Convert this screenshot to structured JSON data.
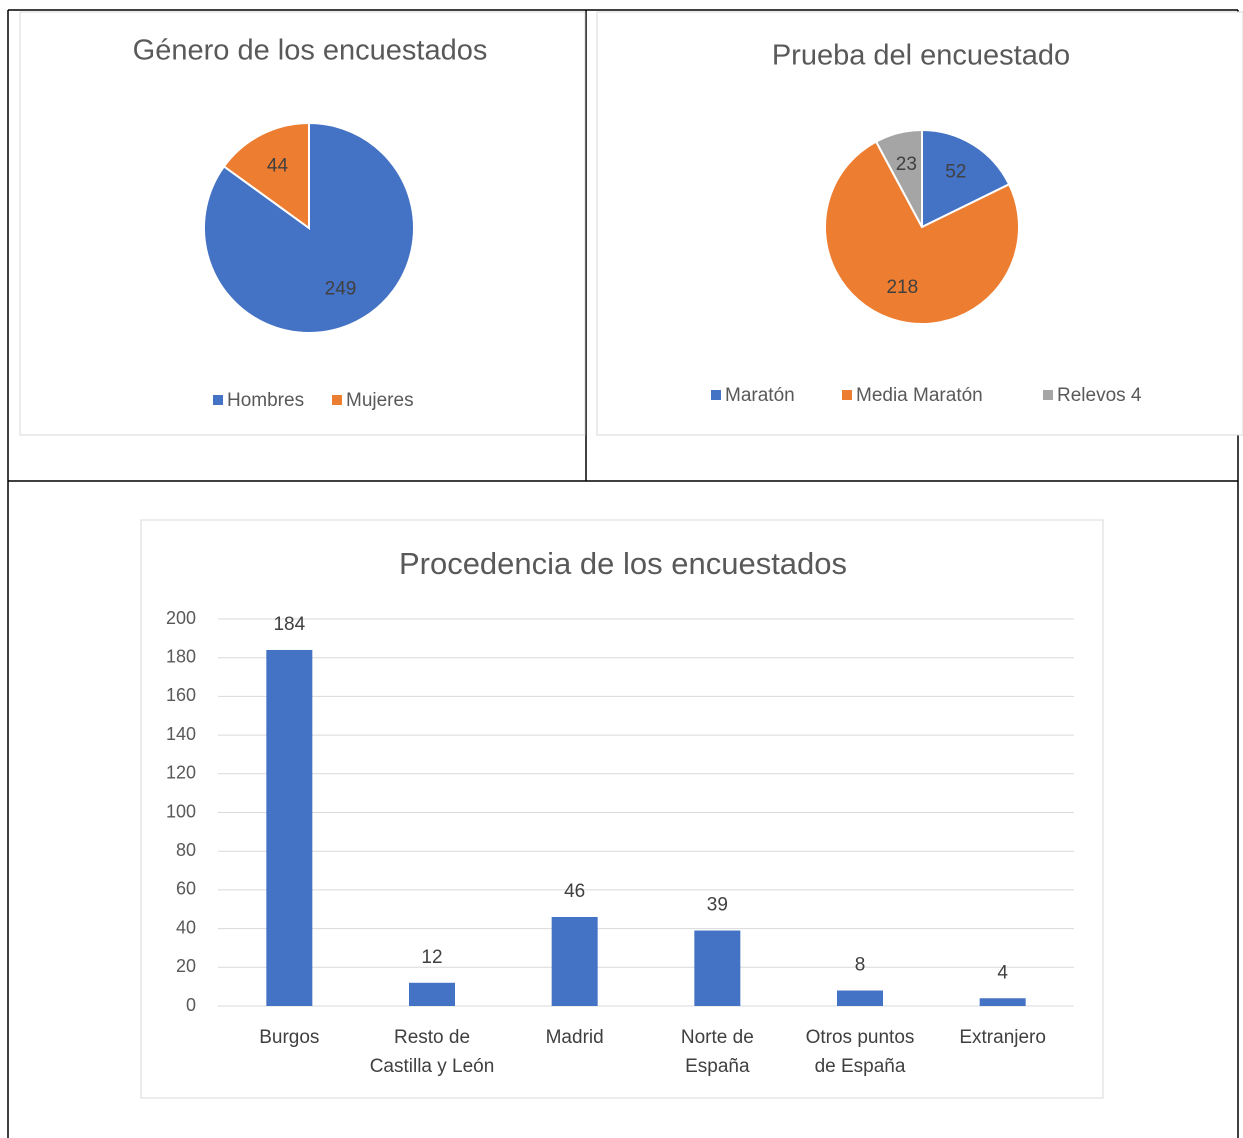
{
  "chart_data": [
    {
      "type": "pie",
      "title": "Género de los encuestados",
      "categories": [
        "Hombres",
        "Mujeres"
      ],
      "values": [
        249,
        44
      ],
      "colors": [
        "#4472c4",
        "#ed7d31"
      ],
      "legend": "bottom"
    },
    {
      "type": "pie",
      "title": "Prueba del encuestado",
      "categories": [
        "Maratón",
        "Media Maratón",
        "Relevos 4"
      ],
      "values": [
        52,
        218,
        23
      ],
      "colors": [
        "#4472c4",
        "#ed7d31",
        "#a5a5a5"
      ],
      "legend": "bottom"
    },
    {
      "type": "bar",
      "title": "Procedencia de los encuestados",
      "categories": [
        "Burgos",
        "Resto de\nCastilla y León",
        "Madrid",
        "Norte de\nEspaña",
        "Otros puntos\nde España",
        "Extranjero"
      ],
      "values": [
        184,
        12,
        46,
        39,
        8,
        4
      ],
      "color": "#4472c4",
      "ylim": [
        0,
        200
      ],
      "yticks": [
        0,
        20,
        40,
        60,
        80,
        100,
        120,
        140,
        160,
        180,
        200
      ],
      "grid": true
    }
  ]
}
